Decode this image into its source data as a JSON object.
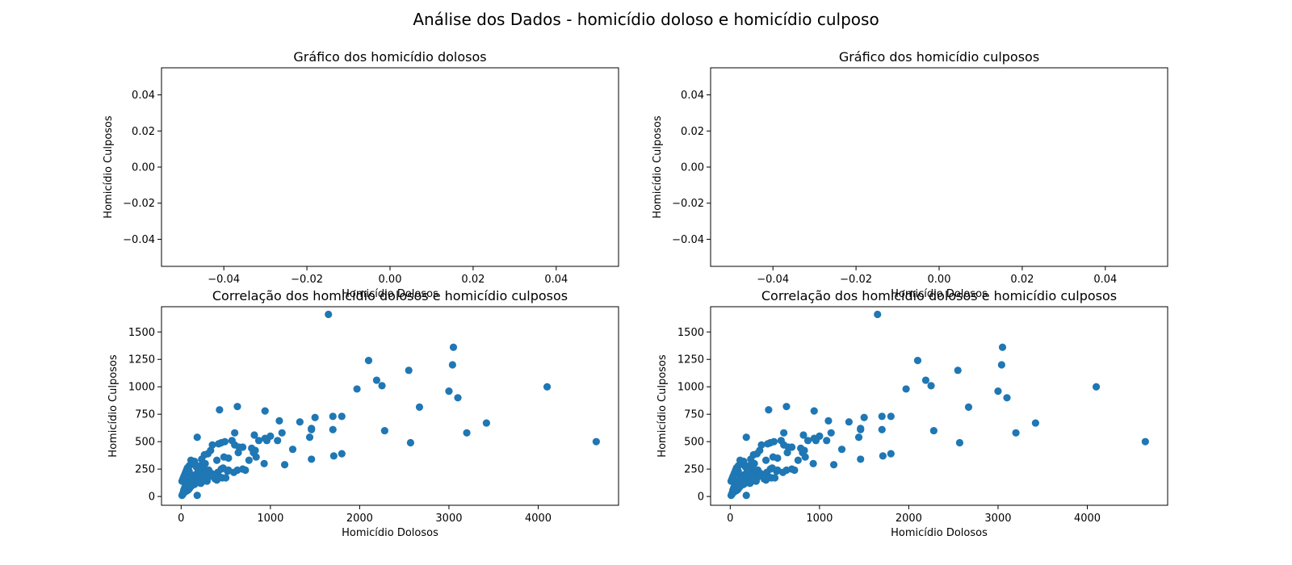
{
  "figure": {
    "suptitle": "Análise dos Dados - homicídio doloso e homicídio culposo"
  },
  "colors": {
    "marker": "#1f77b4",
    "axes": "#000000",
    "background": "#ffffff"
  },
  "chart_data": [
    {
      "type": "scatter",
      "title": "Gráfico dos homicídio dolosos",
      "xlabel": "Homicídio Dolosos",
      "ylabel": "Homicídio Culposos",
      "xlim": [
        -0.055,
        0.055
      ],
      "ylim": [
        -0.055,
        0.055
      ],
      "xticks": [
        "−0.04",
        "−0.02",
        "0.00",
        "0.02",
        "0.04"
      ],
      "xtick_values": [
        -0.04,
        -0.02,
        0.0,
        0.02,
        0.04
      ],
      "yticks": [
        "−0.04",
        "−0.02",
        "0.00",
        "0.02",
        "0.04"
      ],
      "ytick_values": [
        -0.04,
        -0.02,
        0.0,
        0.02,
        0.04
      ],
      "grid": false,
      "x": [],
      "y": []
    },
    {
      "type": "scatter",
      "title": "Gráfico dos homicídio culposos",
      "xlabel": "Homicídio Dolosos",
      "ylabel": "Homicídio Culposos",
      "xlim": [
        -0.055,
        0.055
      ],
      "ylim": [
        -0.055,
        0.055
      ],
      "xticks": [
        "−0.04",
        "−0.02",
        "0.00",
        "0.02",
        "0.04"
      ],
      "xtick_values": [
        -0.04,
        -0.02,
        0.0,
        0.02,
        0.04
      ],
      "yticks": [
        "−0.04",
        "−0.02",
        "0.00",
        "0.02",
        "0.04"
      ],
      "ytick_values": [
        -0.04,
        -0.02,
        0.0,
        0.02,
        0.04
      ],
      "grid": false,
      "x": [],
      "y": []
    },
    {
      "type": "scatter",
      "title": "Correlação dos homicídio dolosos e homicídio culposos",
      "xlabel": "Homicídio Dolosos",
      "ylabel": "Homicídio Culposos",
      "xlim": [
        -220,
        4900
      ],
      "ylim": [
        -80,
        1730
      ],
      "xticks": [
        "0",
        "1000",
        "2000",
        "3000",
        "4000"
      ],
      "xtick_values": [
        0,
        1000,
        2000,
        3000,
        4000
      ],
      "yticks": [
        "0",
        "250",
        "500",
        "750",
        "1000",
        "1250",
        "1500"
      ],
      "ytick_values": [
        0,
        250,
        500,
        750,
        1000,
        1250,
        1500
      ],
      "grid": false,
      "x": [
        1650,
        3050,
        2100,
        3040,
        2190,
        2250,
        1970,
        3000,
        3100,
        2550,
        4100,
        2670,
        630,
        430,
        940,
        1500,
        1700,
        1800,
        1100,
        1330,
        180,
        1460,
        1460,
        2280,
        3200,
        3420,
        1700,
        2570,
        4650,
        600,
        820,
        1000,
        940,
        1080,
        450,
        420,
        350,
        1440,
        1250,
        1130,
        1160,
        690,
        830,
        790,
        1460,
        1800,
        1710,
        840,
        870,
        960,
        930,
        760,
        810,
        640,
        690,
        630,
        720,
        520,
        450,
        490,
        400,
        330,
        300,
        260,
        230,
        480,
        530,
        570,
        600,
        650,
        590,
        530,
        470,
        410,
        430,
        380,
        350,
        310,
        270,
        240,
        210,
        190,
        160,
        140,
        130,
        120,
        110,
        100,
        90,
        80,
        70,
        60,
        50,
        40,
        30,
        20,
        210,
        150,
        120,
        90,
        70,
        60,
        50,
        40,
        30,
        20,
        10,
        160,
        140,
        110,
        100,
        130,
        200,
        230,
        260,
        290,
        170,
        150,
        110,
        90,
        80,
        60,
        40,
        20,
        10,
        30,
        50,
        70,
        90,
        110,
        130,
        150,
        170,
        190,
        210,
        230,
        250,
        270,
        110,
        130,
        150,
        170,
        190,
        210,
        230,
        250,
        180,
        220,
        240,
        310,
        340,
        370,
        400,
        300,
        350,
        380,
        420,
        460,
        500,
        200,
        190
      ],
      "y": [
        1660,
        1360,
        1240,
        1200,
        1060,
        1010,
        980,
        960,
        900,
        1150,
        1000,
        815,
        820,
        790,
        780,
        720,
        730,
        730,
        690,
        680,
        540,
        610,
        620,
        600,
        580,
        670,
        610,
        490,
        500,
        580,
        560,
        550,
        530,
        510,
        490,
        480,
        470,
        540,
        430,
        580,
        290,
        450,
        420,
        440,
        340,
        390,
        370,
        360,
        510,
        510,
        300,
        330,
        400,
        400,
        250,
        240,
        240,
        230,
        250,
        500,
        330,
        420,
        390,
        380,
        340,
        360,
        350,
        510,
        470,
        450,
        220,
        240,
        260,
        220,
        180,
        190,
        190,
        220,
        240,
        230,
        250,
        210,
        200,
        180,
        160,
        190,
        150,
        200,
        230,
        140,
        130,
        110,
        100,
        80,
        50,
        30,
        280,
        320,
        300,
        280,
        260,
        240,
        220,
        200,
        180,
        160,
        140,
        120,
        110,
        100,
        90,
        170,
        150,
        130,
        160,
        140,
        130,
        110,
        90,
        70,
        60,
        50,
        40,
        20,
        10,
        60,
        80,
        100,
        120,
        140,
        160,
        180,
        200,
        220,
        240,
        260,
        280,
        300,
        330,
        310,
        290,
        270,
        250,
        230,
        210,
        190,
        10,
        120,
        160,
        240,
        210,
        180,
        150,
        170,
        190,
        160,
        170,
        170,
        170,
        230,
        250
      ]
    },
    {
      "type": "scatter",
      "title": "Correlação dos homicídio dolosos e homicídio culposos",
      "xlabel": "Homicídio Dolosos",
      "ylabel": "Homicídio Culposos",
      "xlim": [
        -220,
        4900
      ],
      "ylim": [
        -80,
        1730
      ],
      "xticks": [
        "0",
        "1000",
        "2000",
        "3000",
        "4000"
      ],
      "xtick_values": [
        0,
        1000,
        2000,
        3000,
        4000
      ],
      "yticks": [
        "0",
        "250",
        "500",
        "750",
        "1000",
        "1250",
        "1500"
      ],
      "ytick_values": [
        0,
        250,
        500,
        750,
        1000,
        1250,
        1500
      ],
      "grid": false,
      "x": [
        1650,
        3050,
        2100,
        3040,
        2190,
        2250,
        1970,
        3000,
        3100,
        2550,
        4100,
        2670,
        630,
        430,
        940,
        1500,
        1700,
        1800,
        1100,
        1330,
        180,
        1460,
        1460,
        2280,
        3200,
        3420,
        1700,
        2570,
        4650,
        600,
        820,
        1000,
        940,
        1080,
        450,
        420,
        350,
        1440,
        1250,
        1130,
        1160,
        690,
        830,
        790,
        1460,
        1800,
        1710,
        840,
        870,
        960,
        930,
        760,
        810,
        640,
        690,
        630,
        720,
        520,
        450,
        490,
        400,
        330,
        300,
        260,
        230,
        480,
        530,
        570,
        600,
        650,
        590,
        530,
        470,
        410,
        430,
        380,
        350,
        310,
        270,
        240,
        210,
        190,
        160,
        140,
        130,
        120,
        110,
        100,
        90,
        80,
        70,
        60,
        50,
        40,
        30,
        20,
        210,
        150,
        120,
        90,
        70,
        60,
        50,
        40,
        30,
        20,
        10,
        160,
        140,
        110,
        100,
        130,
        200,
        230,
        260,
        290,
        170,
        150,
        110,
        90,
        80,
        60,
        40,
        20,
        10,
        30,
        50,
        70,
        90,
        110,
        130,
        150,
        170,
        190,
        210,
        230,
        250,
        270,
        110,
        130,
        150,
        170,
        190,
        210,
        230,
        250,
        180,
        220,
        240,
        310,
        340,
        370,
        400,
        300,
        350,
        380,
        420,
        460,
        500,
        200,
        190
      ],
      "y": [
        1660,
        1360,
        1240,
        1200,
        1060,
        1010,
        980,
        960,
        900,
        1150,
        1000,
        815,
        820,
        790,
        780,
        720,
        730,
        730,
        690,
        680,
        540,
        610,
        620,
        600,
        580,
        670,
        610,
        490,
        500,
        580,
        560,
        550,
        530,
        510,
        490,
        480,
        470,
        540,
        430,
        580,
        290,
        450,
        420,
        440,
        340,
        390,
        370,
        360,
        510,
        510,
        300,
        330,
        400,
        400,
        250,
        240,
        240,
        230,
        250,
        500,
        330,
        420,
        390,
        380,
        340,
        360,
        350,
        510,
        470,
        450,
        220,
        240,
        260,
        220,
        180,
        190,
        190,
        220,
        240,
        230,
        250,
        210,
        200,
        180,
        160,
        190,
        150,
        200,
        230,
        140,
        130,
        110,
        100,
        80,
        50,
        30,
        280,
        320,
        300,
        280,
        260,
        240,
        220,
        200,
        180,
        160,
        140,
        120,
        110,
        100,
        90,
        170,
        150,
        130,
        160,
        140,
        130,
        110,
        90,
        70,
        60,
        50,
        40,
        20,
        10,
        60,
        80,
        100,
        120,
        140,
        160,
        180,
        200,
        220,
        240,
        260,
        280,
        300,
        330,
        310,
        290,
        270,
        250,
        230,
        210,
        190,
        10,
        120,
        160,
        240,
        210,
        180,
        150,
        170,
        190,
        160,
        170,
        170,
        170,
        230,
        250
      ]
    }
  ]
}
